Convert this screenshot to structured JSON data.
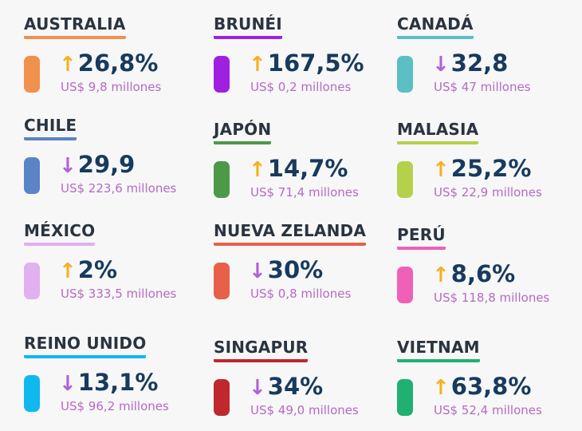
{
  "colors": {
    "up_arrow": "#f5b020",
    "down_arrow": "#b060d8",
    "value": "#173a5e",
    "subtitle": "#b56ac6"
  },
  "countries": [
    {
      "name": "AUSTRALIA",
      "direction": "up",
      "value": "26,8%",
      "amount": "US$ 9,8 millones",
      "color": "#f0914e"
    },
    {
      "name": "BRUNÉI",
      "direction": "up",
      "value": "167,5%",
      "amount": "US$ 0,2 millones",
      "color": "#a020e0"
    },
    {
      "name": "CANADÁ",
      "direction": "down",
      "value": "32,8",
      "amount": "US$ 47 millones",
      "color": "#5bbfc4"
    },
    {
      "name": "CHILE",
      "direction": "down",
      "value": "29,9",
      "amount": "US$ 223,6 millones",
      "color": "#5b84c4"
    },
    {
      "name": "JAPÓN",
      "direction": "up",
      "value": "14,7%",
      "amount": "US$ 71,4 millones",
      "color": "#4c9a48"
    },
    {
      "name": "MALASIA",
      "direction": "up",
      "value": "25,2%",
      "amount": "US$ 22,9 millones",
      "color": "#b5d04a"
    },
    {
      "name": "MÉXICO",
      "direction": "up",
      "value": "2%",
      "amount": "US$ 333,5 millones",
      "color": "#e0b0f0"
    },
    {
      "name": "NUEVA ZELANDA",
      "direction": "down",
      "value": "30%",
      "amount": "US$ 0,8 millones",
      "color": "#e8604a"
    },
    {
      "name": "PERÚ",
      "direction": "up",
      "value": "8,6%",
      "amount": "US$ 118,8 millones",
      "color": "#f060b8"
    },
    {
      "name": "REINO UNIDO",
      "direction": "down",
      "value": "13,1%",
      "amount": "US$ 96,2 millones",
      "color": "#10b8f0"
    },
    {
      "name": "SINGAPUR",
      "direction": "down",
      "value": "34%",
      "amount": "US$ 49,0 millones",
      "color": "#c0282e"
    },
    {
      "name": "VIETNAM",
      "direction": "up",
      "value": "63,8%",
      "amount": "US$ 52,4 millones",
      "color": "#20b070"
    }
  ]
}
